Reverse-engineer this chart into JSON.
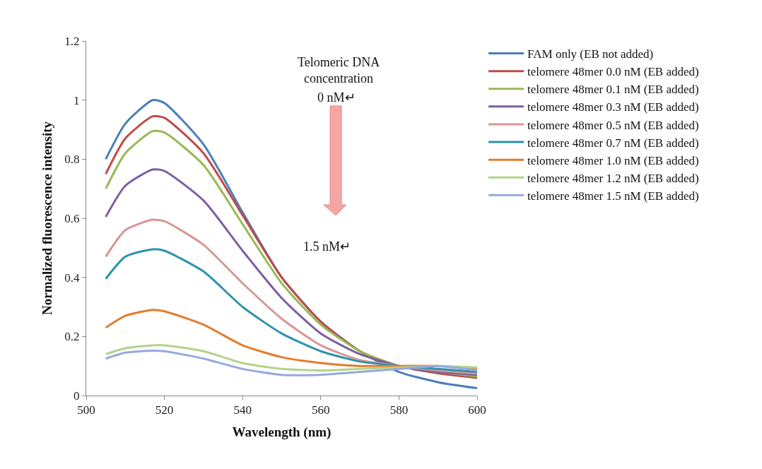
{
  "chart_data": {
    "type": "line",
    "xlabel": "Wavelength (nm)",
    "ylabel": "Normalized fluorescence intensity",
    "x": [
      505,
      510,
      517,
      520,
      530,
      540,
      550,
      560,
      570,
      580,
      590,
      600
    ],
    "xlim": [
      500,
      600
    ],
    "xticks": [
      500,
      520,
      540,
      560,
      580,
      600
    ],
    "ylim": [
      0,
      1.2
    ],
    "yticks": [
      0,
      0.2,
      0.4,
      0.6,
      0.8,
      1,
      1.2
    ],
    "grid": false,
    "legend": "right",
    "marker": "none",
    "line_style": "solid",
    "annotations": [
      "Telomeric DNA\nconcentration",
      "0 nM↵",
      "1.5 nM↵"
    ],
    "series": [
      {
        "name": "FAM only (EB not added)",
        "color": "#4a7ebb",
        "values": [
          0.8,
          0.92,
          1.0,
          0.99,
          0.85,
          0.62,
          0.4,
          0.25,
          0.15,
          0.08,
          0.045,
          0.025
        ]
      },
      {
        "name": "telomere 48mer 0.0 nM (EB added)",
        "color": "#be4b48",
        "values": [
          0.75,
          0.87,
          0.945,
          0.94,
          0.82,
          0.61,
          0.4,
          0.25,
          0.15,
          0.1,
          0.075,
          0.06
        ]
      },
      {
        "name": "telomere 48mer 0.1 nM (EB added)",
        "color": "#98b954",
        "values": [
          0.7,
          0.82,
          0.895,
          0.89,
          0.78,
          0.58,
          0.38,
          0.24,
          0.15,
          0.1,
          0.08,
          0.065
        ]
      },
      {
        "name": "telomere 48mer 0.3 nM (EB added)",
        "color": "#7d60a0",
        "values": [
          0.605,
          0.71,
          0.765,
          0.76,
          0.66,
          0.49,
          0.33,
          0.21,
          0.14,
          0.1,
          0.08,
          0.07
        ]
      },
      {
        "name": "telomere 48mer 0.5 nM (EB added)",
        "color": "#d99694",
        "values": [
          0.47,
          0.56,
          0.595,
          0.59,
          0.51,
          0.38,
          0.26,
          0.17,
          0.12,
          0.1,
          0.085,
          0.075
        ]
      },
      {
        "name": "telomere 48mer 0.7 nM (EB added)",
        "color": "#2c93ad",
        "values": [
          0.395,
          0.47,
          0.495,
          0.49,
          0.42,
          0.3,
          0.21,
          0.15,
          0.115,
          0.1,
          0.09,
          0.08
        ]
      },
      {
        "name": "telomere 48mer 1.0 nM (EB added)",
        "color": "#e57b2a",
        "values": [
          0.23,
          0.27,
          0.29,
          0.285,
          0.24,
          0.17,
          0.13,
          0.11,
          0.1,
          0.1,
          0.1,
          0.09
        ]
      },
      {
        "name": "telomere 48mer 1.2 nM (EB added)",
        "color": "#b3d38a",
        "values": [
          0.14,
          0.16,
          0.17,
          0.17,
          0.15,
          0.11,
          0.09,
          0.085,
          0.09,
          0.095,
          0.1,
          0.095
        ]
      },
      {
        "name": "telomere 48mer 1.5 nM (EB added)",
        "color": "#95a9de",
        "values": [
          0.125,
          0.145,
          0.152,
          0.15,
          0.125,
          0.09,
          0.07,
          0.07,
          0.08,
          0.09,
          0.1,
          0.085
        ]
      }
    ]
  }
}
